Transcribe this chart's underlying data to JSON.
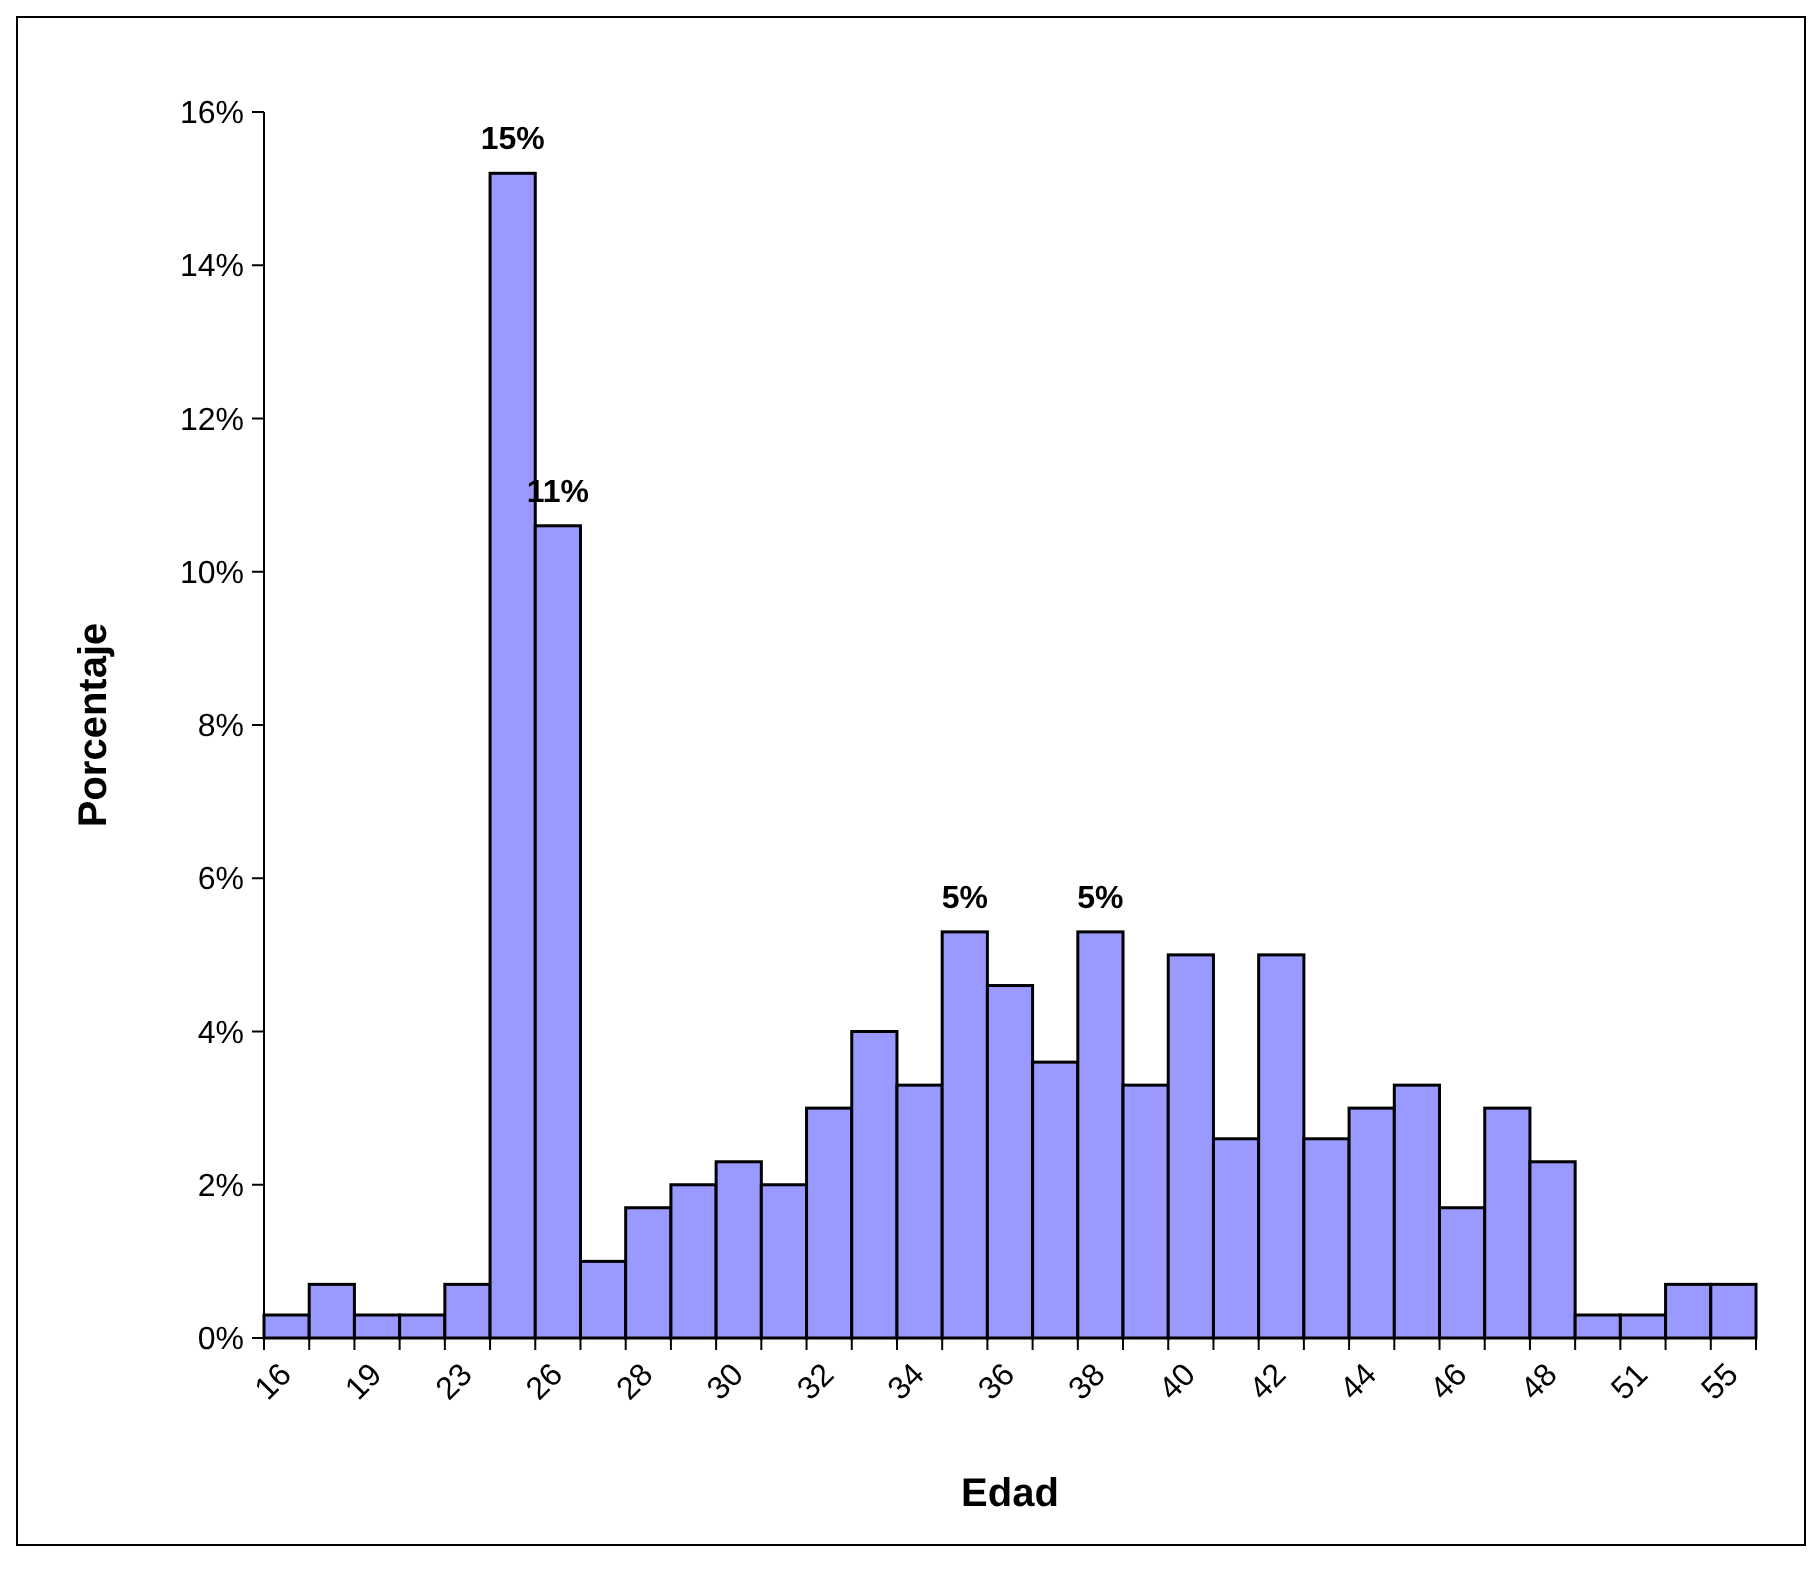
{
  "chart_data": {
    "type": "bar",
    "xlabel": "Edad",
    "ylabel": "Porcentaje",
    "categories": [
      "16",
      null,
      "19",
      null,
      "23",
      null,
      "26",
      null,
      "28",
      null,
      "30",
      null,
      "32",
      null,
      "34",
      null,
      "36",
      null,
      "38",
      null,
      "40",
      null,
      "42",
      null,
      "44",
      null,
      "46",
      null,
      "48",
      null,
      "51",
      null,
      "55"
    ],
    "values": [
      0.3,
      0.7,
      0.3,
      0.3,
      0.7,
      15.2,
      10.6,
      1.0,
      1.7,
      2.0,
      2.3,
      2.0,
      3.0,
      4.0,
      3.3,
      5.3,
      4.6,
      3.6,
      5.3,
      3.3,
      5.0,
      2.6,
      5.0,
      2.6,
      3.0,
      3.3,
      1.7,
      3.0,
      2.3,
      0.3,
      0.3,
      0.7,
      0.7
    ],
    "value_labels": [
      null,
      null,
      null,
      null,
      null,
      "15%",
      "11%",
      null,
      null,
      null,
      null,
      null,
      null,
      null,
      null,
      "5%",
      null,
      null,
      "5%",
      null,
      null,
      null,
      null,
      null,
      null,
      null,
      null,
      null,
      null,
      null,
      null,
      null,
      null
    ],
    "color": "#9999ff",
    "ylim": [
      0,
      16
    ],
    "yticks": [
      {
        "value": 0,
        "label": "0%"
      },
      {
        "value": 2,
        "label": "2%"
      },
      {
        "value": 4,
        "label": "4%"
      },
      {
        "value": 6,
        "label": "6%"
      },
      {
        "value": 8,
        "label": "8%"
      },
      {
        "value": 10,
        "label": "10%"
      },
      {
        "value": 12,
        "label": "12%"
      },
      {
        "value": 14,
        "label": "14%"
      },
      {
        "value": 16,
        "label": "16%"
      }
    ],
    "grid": false
  }
}
